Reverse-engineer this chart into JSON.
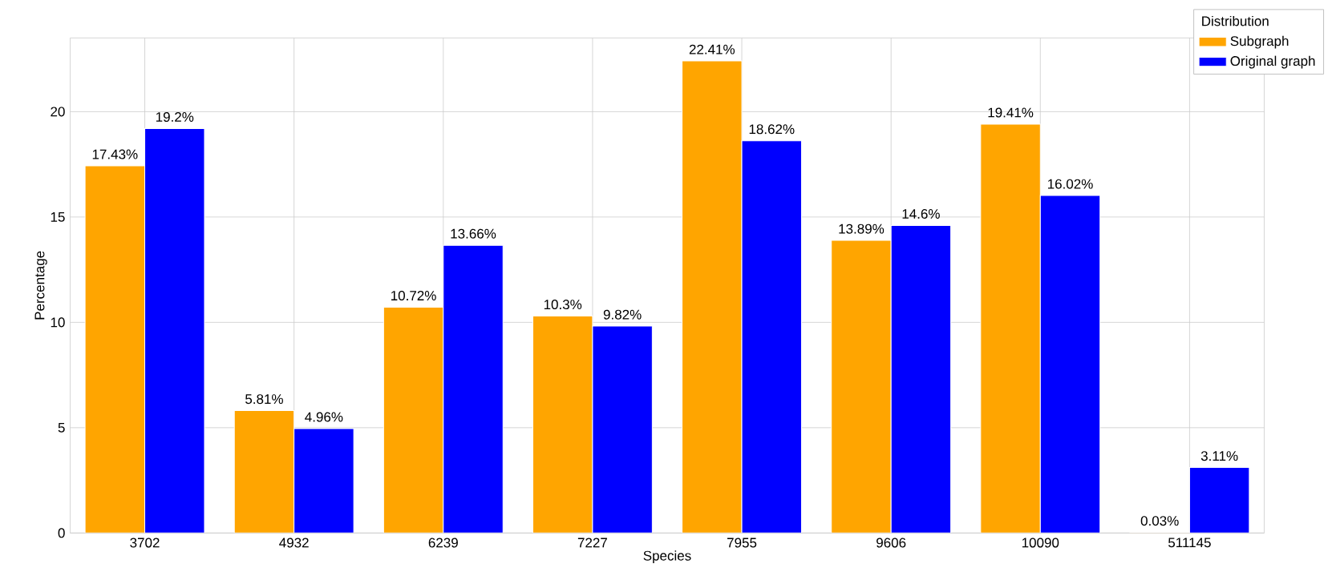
{
  "chart_data": {
    "type": "bar",
    "xlabel": "Species",
    "ylabel": "Percentage",
    "legend_title": "Distribution",
    "legend": "top right",
    "grid": true,
    "categories": [
      "3702",
      "4932",
      "6239",
      "7227",
      "7955",
      "9606",
      "10090",
      "511145"
    ],
    "series": [
      {
        "name": "Subgraph",
        "color": "#ffa500",
        "values": [
          17.43,
          5.81,
          10.72,
          10.3,
          22.41,
          13.89,
          19.41,
          0.03
        ],
        "value_labels": [
          "17.43%",
          "5.81%",
          "10.72%",
          "10.3%",
          "22.41%",
          "13.89%",
          "19.41%",
          "0.03%"
        ]
      },
      {
        "name": "Original graph",
        "color": "#0000ff",
        "values": [
          19.2,
          4.96,
          13.66,
          9.82,
          18.62,
          14.6,
          16.02,
          3.11
        ],
        "value_labels": [
          "19.2%",
          "4.96%",
          "13.66%",
          "9.82%",
          "18.62%",
          "14.6%",
          "16.02%",
          "3.11%"
        ]
      }
    ],
    "ylim": [
      0,
      23.5
    ],
    "yticks": [
      0,
      5,
      10,
      15,
      20
    ]
  }
}
